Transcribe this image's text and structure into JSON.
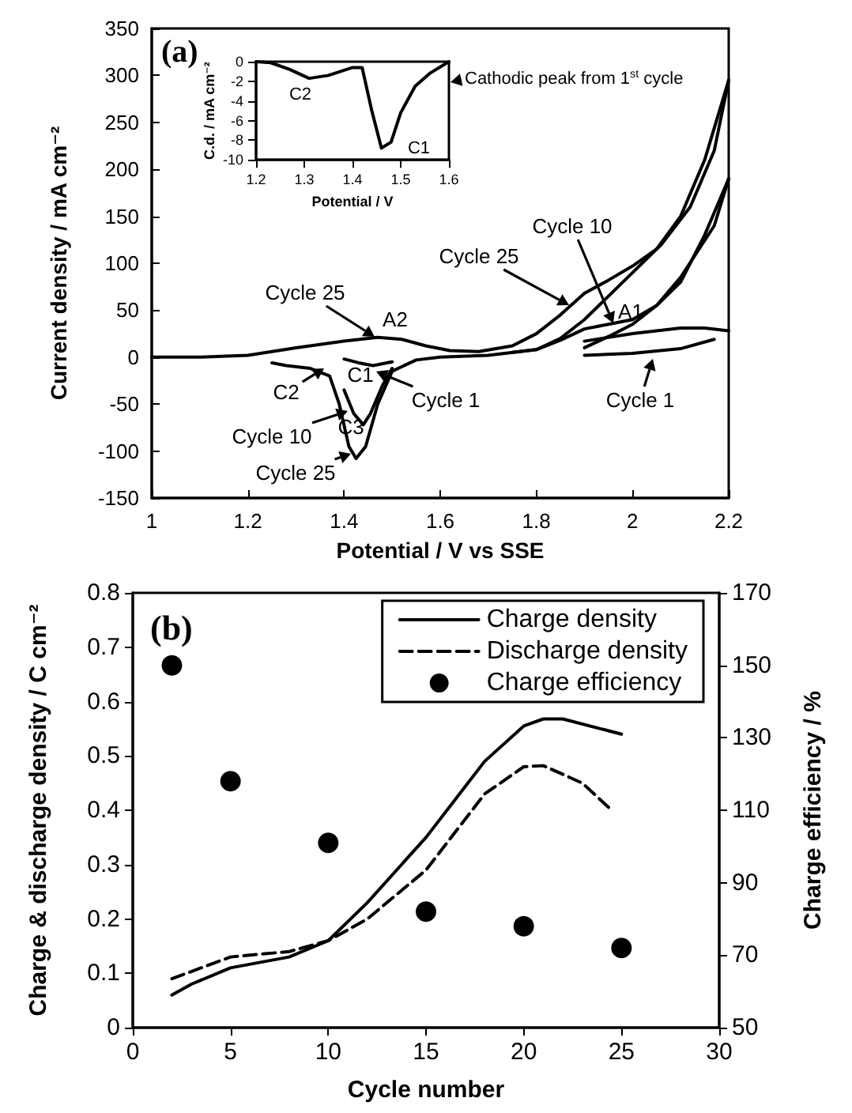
{
  "chart_data": [
    {
      "type": "line",
      "title": "(a)",
      "xlabel": "Potential / V vs SSE",
      "ylabel": "Current density / mA cm⁻²",
      "xlim": [
        1,
        2.2
      ],
      "xticks": [
        1,
        1.2,
        1.4,
        1.6,
        1.8,
        2,
        2.2
      ],
      "ylim": [
        -150,
        350
      ],
      "yticks": [
        -150,
        -100,
        -50,
        0,
        50,
        100,
        150,
        200,
        250,
        300,
        350
      ],
      "series": [
        {
          "color": "#000000",
          "x": [
            1.0,
            1.1,
            1.2,
            1.3,
            1.4,
            1.47,
            1.52,
            1.57,
            1.62,
            1.68,
            1.75,
            1.8,
            1.85,
            1.9,
            1.95,
            2.0,
            2.05,
            2.1,
            2.15,
            2.2
          ],
          "values": [
            0,
            0,
            2,
            10,
            17,
            21,
            19,
            12,
            7,
            6,
            12,
            25,
            45,
            68,
            82,
            97,
            115,
            150,
            210,
            295
          ]
        },
        {
          "color": "#000000",
          "x": [
            1.25,
            1.28,
            1.33,
            1.37,
            1.39,
            1.41,
            1.425,
            1.445,
            1.47,
            1.5,
            1.55,
            1.6,
            1.7,
            1.8,
            1.85,
            1.9,
            1.95,
            2.0,
            2.06,
            2.12,
            2.17,
            2.2
          ],
          "values": [
            -6,
            -9,
            -12,
            -20,
            -50,
            -95,
            -108,
            -95,
            -50,
            -15,
            -3,
            0,
            2,
            8,
            20,
            40,
            65,
            90,
            120,
            160,
            220,
            295
          ]
        },
        {
          "color": "#000000",
          "x": [
            1.75,
            1.8,
            1.85,
            1.9,
            1.95,
            2.0,
            2.05,
            2.1,
            2.15,
            2.2
          ],
          "values": [
            5,
            8,
            18,
            30,
            35,
            40,
            55,
            80,
            130,
            190
          ]
        },
        {
          "color": "#000000",
          "x": [
            1.4,
            1.42,
            1.44,
            1.455,
            1.48,
            1.5,
            1.7,
            1.9,
            1.95,
            2.0,
            2.05,
            2.1,
            2.17,
            2.2
          ],
          "values": [
            -35,
            -60,
            -72,
            -60,
            -30,
            -12,
            null,
            10,
            22,
            35,
            55,
            85,
            140,
            190
          ]
        },
        {
          "color": "#000000",
          "x": [
            1.9,
            2.0,
            2.1,
            2.17
          ],
          "values": [
            2,
            4,
            9,
            19
          ]
        },
        {
          "color": "#000000",
          "x": [
            1.4,
            1.43,
            1.46,
            1.5,
            1.7,
            1.9,
            2.0,
            2.1,
            2.15,
            2.2
          ],
          "values": [
            -2,
            -6,
            -9,
            -5,
            null,
            17,
            25,
            31,
            31,
            28
          ]
        }
      ],
      "annotations": [
        "Cycle 25",
        "A2",
        "Cycle 25",
        {
          "text": "Cycle 10",
          "x": 1.96,
          "y": 36
        },
        "A1",
        "C2",
        "C1",
        "Cycle 1",
        "Cycle 1",
        "Cycle 10",
        "C3",
        "Cycle 25"
      ]
    },
    {
      "type": "line",
      "xlabel": "Potential / V",
      "ylabel": "C.d. / mA cm⁻²",
      "xlim": [
        1.2,
        1.6
      ],
      "xticks": [
        1.2,
        1.3,
        1.4,
        1.5,
        1.6
      ],
      "ylim": [
        -10,
        0
      ],
      "yticks": [
        -10,
        -8,
        -6,
        -4,
        -2,
        0
      ],
      "series": [
        {
          "color": "#000000",
          "x": [
            1.2,
            1.23,
            1.27,
            1.31,
            1.35,
            1.4,
            1.42,
            1.44,
            1.46,
            1.48,
            1.5,
            1.53,
            1.56,
            1.6
          ],
          "values": [
            0,
            -0.1,
            -0.8,
            -1.7,
            -1.4,
            -0.6,
            -0.6,
            -5,
            -8.8,
            -8.2,
            -5.2,
            -2.5,
            -1.2,
            0
          ]
        }
      ],
      "annotations": [
        "C2",
        "C1",
        "Cathodic peak from 1$^{st}$ cycle"
      ]
    },
    {
      "type": "line",
      "title": "(b)",
      "xlabel": "Cycle number",
      "ylabel": "Charge & discharge density / C cm⁻²",
      "y2label": "Charge efficiency / %",
      "xlim": [
        0,
        30
      ],
      "xticks": [
        0,
        5,
        10,
        15,
        20,
        25,
        30
      ],
      "ylim": [
        0,
        0.8
      ],
      "yticks": [
        0,
        0.1,
        0.2,
        0.3,
        0.4,
        0.5,
        0.6,
        0.7,
        0.8
      ],
      "y2lim": [
        50,
        170
      ],
      "y2ticks": [
        50,
        70,
        90,
        110,
        130,
        150,
        170
      ],
      "legend": "top right",
      "series": [
        {
          "name": "Charge density",
          "color": "#000000",
          "line_style": "solid",
          "x": [
            2,
            3,
            5,
            8,
            10,
            12,
            15,
            18,
            20,
            21,
            22,
            25
          ],
          "values": [
            0.06,
            0.08,
            0.11,
            0.13,
            0.16,
            0.23,
            0.35,
            0.49,
            0.555,
            0.568,
            0.568,
            0.54
          ]
        },
        {
          "name": "Discharge density",
          "color": "#000000",
          "line_style": "dashed",
          "x": [
            2,
            5,
            8,
            10,
            12,
            15,
            18,
            20,
            21,
            23,
            24.5
          ],
          "values": [
            0.09,
            0.13,
            0.14,
            0.16,
            0.2,
            0.29,
            0.43,
            0.48,
            0.482,
            0.45,
            0.4
          ]
        },
        {
          "name": "Charge efficiency",
          "type": "scatter",
          "marker": "circle",
          "axis": "y2",
          "color": "#000000",
          "x": [
            2,
            5,
            10,
            15,
            20,
            25
          ],
          "values": [
            150,
            118,
            101,
            82,
            78,
            72
          ]
        }
      ]
    }
  ]
}
